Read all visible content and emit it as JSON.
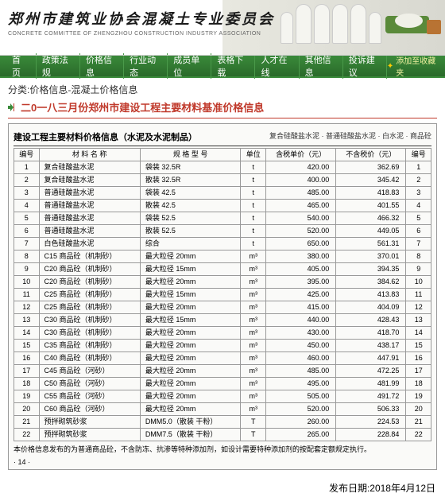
{
  "header": {
    "title": "郑州市建筑业协会混凝土专业委员会",
    "subtitle": "CONCRETE COMMITTEE OF ZHENGZHOU CONSTRUCTION INDUSTRY ASSOCIATION"
  },
  "nav": {
    "items": [
      "首 页",
      "政策法规",
      "价格信息",
      "行业动态",
      "成员单位",
      "表格下载",
      "人才在线",
      "其他信息",
      "投诉建议"
    ],
    "favorite": "添加至收藏夹"
  },
  "breadcrumb": "分类:价格信息-混凝土价格信息",
  "page_title": "二0一八三月份郑州市建设工程主要材料基准价格信息",
  "doc": {
    "title": "建设工程主要材料价格信息（水泥及水泥制品）",
    "subtitle": "复合硅酸盐水泥 · 普通硅酸盐水泥 · 白水泥 · 商品砼",
    "headers": [
      "编号",
      "材 料 名 称",
      "规 格 型 号",
      "单位",
      "含税单价（元）",
      "不含税价（元）",
      "编号"
    ],
    "rows": [
      [
        "1",
        "复合硅酸盐水泥",
        "袋装 32.5R",
        "t",
        "420.00",
        "362.69",
        "1"
      ],
      [
        "2",
        "复合硅酸盐水泥",
        "散装 32.5R",
        "t",
        "400.00",
        "345.42",
        "2"
      ],
      [
        "3",
        "普通硅酸盐水泥",
        "袋装 42.5",
        "t",
        "485.00",
        "418.83",
        "3"
      ],
      [
        "4",
        "普通硅酸盐水泥",
        "散装 42.5",
        "t",
        "465.00",
        "401.55",
        "4"
      ],
      [
        "5",
        "普通硅酸盐水泥",
        "袋装 52.5",
        "t",
        "540.00",
        "466.32",
        "5"
      ],
      [
        "6",
        "普通硅酸盐水泥",
        "散装 52.5",
        "t",
        "520.00",
        "449.05",
        "6"
      ],
      [
        "7",
        "白色硅酸盐水泥",
        "综合",
        "t",
        "650.00",
        "561.31",
        "7"
      ],
      [
        "8",
        "C15 商品砼（机制砂）",
        "最大粒径 20mm",
        "m³",
        "380.00",
        "370.01",
        "8"
      ],
      [
        "9",
        "C20 商品砼（机制砂）",
        "最大粒径 15mm",
        "m³",
        "405.00",
        "394.35",
        "9"
      ],
      [
        "10",
        "C20 商品砼（机制砂）",
        "最大粒径 20mm",
        "m³",
        "395.00",
        "384.62",
        "10"
      ],
      [
        "11",
        "C25 商品砼（机制砂）",
        "最大粒径 15mm",
        "m³",
        "425.00",
        "413.83",
        "11"
      ],
      [
        "12",
        "C25 商品砼（机制砂）",
        "最大粒径 20mm",
        "m³",
        "415.00",
        "404.09",
        "12"
      ],
      [
        "13",
        "C30 商品砼（机制砂）",
        "最大粒径 15mm",
        "m³",
        "440.00",
        "428.43",
        "13"
      ],
      [
        "14",
        "C30 商品砼（机制砂）",
        "最大粒径 20mm",
        "m³",
        "430.00",
        "418.70",
        "14"
      ],
      [
        "15",
        "C35 商品砼（机制砂）",
        "最大粒径 20mm",
        "m³",
        "450.00",
        "438.17",
        "15"
      ],
      [
        "16",
        "C40 商品砼（机制砂）",
        "最大粒径 20mm",
        "m³",
        "460.00",
        "447.91",
        "16"
      ],
      [
        "17",
        "C45 商品砼（河砂）",
        "最大粒径 20mm",
        "m³",
        "485.00",
        "472.25",
        "17"
      ],
      [
        "18",
        "C50 商品砼（河砂）",
        "最大粒径 20mm",
        "m³",
        "495.00",
        "481.99",
        "18"
      ],
      [
        "19",
        "C55 商品砼（河砂）",
        "最大粒径 20mm",
        "m³",
        "505.00",
        "491.72",
        "19"
      ],
      [
        "20",
        "C60 商品砼（河砂）",
        "最大粒径 20mm",
        "m³",
        "520.00",
        "506.33",
        "20"
      ],
      [
        "21",
        "预拌砌筑砂浆",
        "DMM5.0（散装 干粉）",
        "T",
        "260.00",
        "224.53",
        "21"
      ],
      [
        "22",
        "预拌砌筑砂浆",
        "DMM7.5（散装 干粉）",
        "T",
        "265.00",
        "228.84",
        "22"
      ]
    ],
    "note": "本价格信息发布的为普通商品砼，不含防冻、抗渗等特种添加剂，如设计需要特种添加剂的按配套定额规定执行。",
    "page_num": "· 14 ·"
  },
  "publish_date": "发布日期:2018年4月12日"
}
